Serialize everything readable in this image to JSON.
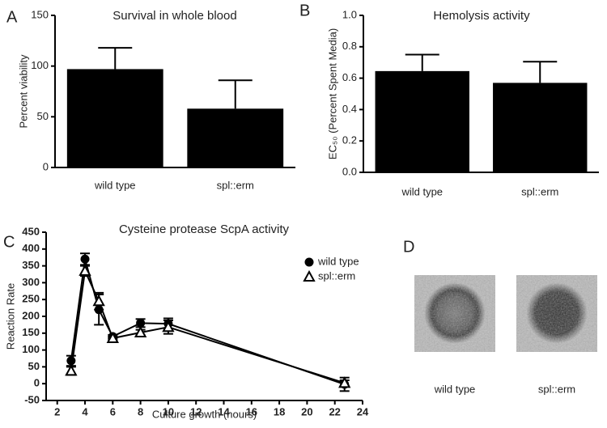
{
  "chart_data": [
    {
      "type": "bar",
      "panel_label": "A",
      "title": "Survival in whole blood",
      "y_label": "Percent viability",
      "categories": [
        "wild type",
        "spl::erm"
      ],
      "values": [
        97,
        58
      ],
      "errors": [
        21,
        28
      ],
      "color": "#000000",
      "ylim": [
        0,
        150
      ],
      "yticks": [
        0,
        50,
        100,
        150
      ]
    },
    {
      "type": "bar",
      "panel_label": "B",
      "title": "Hemolysis activity",
      "y_label": "EC₅₀ (Percent Spent Media)",
      "categories": [
        "wild type",
        "spl::erm"
      ],
      "values": [
        0.645,
        0.57
      ],
      "errors": [
        0.105,
        0.135
      ],
      "color": "#000000",
      "ylim": [
        0,
        1.0
      ],
      "yticks": [
        {
          "value": 0,
          "label": "0.0"
        },
        0.2,
        0.4,
        0.6,
        0.8,
        {
          "value": 1.0,
          "label": "1.0"
        }
      ]
    },
    {
      "type": "line",
      "panel_label": "C",
      "title": "Cysteine protease ScpA activity",
      "x_label": "Culture growth (hours)",
      "y_label": "Reaction Rate",
      "x": [
        3,
        4,
        5,
        6,
        8,
        10,
        22.7
      ],
      "series": [
        {
          "name": "wild type",
          "color": "#000000",
          "marker": "circle",
          "values": [
            68,
            370,
            220,
            140,
            180,
            178,
            -2
          ],
          "errors": [
            15,
            17,
            45,
            5,
            12,
            16,
            20
          ]
        },
        {
          "name": "spl::erm",
          "color": "#000000",
          "marker": "triangle",
          "values": [
            38,
            335,
            245,
            135,
            152,
            168,
            2
          ],
          "errors": [
            12,
            15,
            25,
            5,
            8,
            20,
            8
          ]
        }
      ],
      "xlim": [
        1.2,
        24
      ],
      "xticks": [
        2,
        4,
        6,
        8,
        10,
        12,
        14,
        16,
        18,
        20,
        22,
        24
      ],
      "ylim": [
        -50,
        450
      ],
      "yticks": [
        -50,
        0,
        50,
        100,
        150,
        200,
        250,
        300,
        350,
        400,
        450
      ]
    },
    {
      "type": "image",
      "panel_label": "D",
      "categories": [
        "wild type",
        "spl::erm"
      ]
    }
  ]
}
